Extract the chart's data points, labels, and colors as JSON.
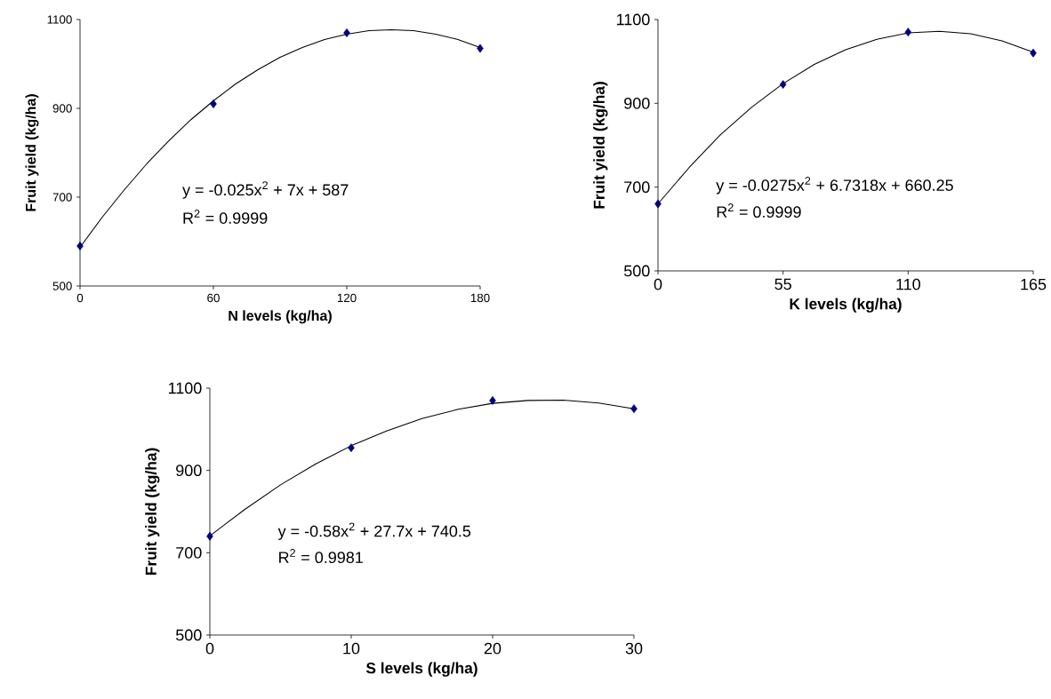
{
  "chart_data": [
    {
      "type": "scatter",
      "xlabel": "N levels (kg/ha)",
      "ylabel": "Fruit yield (kg/ha)",
      "xlim": [
        0,
        180
      ],
      "ylim": [
        500,
        1100
      ],
      "xticks": [
        0,
        60,
        120,
        180
      ],
      "yticks": [
        500,
        700,
        900,
        1100
      ],
      "marker": "diamond",
      "annotations": [
        "y = -0.025x$^{2}$ + 7x + 587",
        "R$^{2}$ = 0.9999"
      ],
      "series": [
        {
          "type": "line",
          "color": "#000000",
          "marker": "none",
          "x": [
            0,
            10,
            20,
            30,
            40,
            50,
            60,
            70,
            80,
            90,
            100,
            110,
            120,
            130,
            140,
            150,
            160,
            170,
            180
          ],
          "values": [
            587,
            655,
            717,
            775,
            827,
            875,
            917,
            955,
            987,
            1015,
            1037,
            1055,
            1067,
            1075,
            1077,
            1075,
            1067,
            1055,
            1037
          ]
        },
        {
          "color": "#000080",
          "x": [
            0,
            60,
            120,
            180
          ],
          "values": [
            590,
            910,
            1070,
            1035
          ]
        }
      ]
    },
    {
      "type": "scatter",
      "xlabel": "K levels (kg/ha)",
      "ylabel": "Fruit yield (kg/ha)",
      "xlim": [
        0,
        165
      ],
      "ylim": [
        500,
        1100
      ],
      "xticks": [
        0,
        55,
        110,
        165
      ],
      "yticks": [
        500,
        700,
        900,
        1100
      ],
      "marker": "diamond",
      "annotations": [
        "y = -0.0275x$^{2}$ + 6.7318x + 660.25",
        "R$^{2}$ = 0.9999"
      ],
      "series": [
        {
          "type": "line",
          "color": "#000000",
          "marker": "none",
          "x": [
            0,
            13.75,
            27.5,
            41.25,
            55,
            68.75,
            82.5,
            96.25,
            110,
            123.75,
            137.5,
            151.25,
            165
          ],
          "values": [
            660,
            747,
            825,
            891,
            947,
            993,
            1028,
            1053,
            1068,
            1072,
            1066,
            1049,
            1022
          ]
        },
        {
          "color": "#000080",
          "x": [
            0,
            55,
            110,
            165
          ],
          "values": [
            660,
            945,
            1070,
            1020
          ]
        }
      ]
    },
    {
      "type": "scatter",
      "xlabel": "S levels (kg/ha)",
      "ylabel": "Fruit yield (kg/ha)",
      "xlim": [
        0,
        30
      ],
      "ylim": [
        500,
        1100
      ],
      "xticks": [
        0,
        10,
        20,
        30
      ],
      "yticks": [
        500,
        700,
        900,
        1100
      ],
      "marker": "diamond",
      "annotations": [
        "y = -0.58x$^{2}$ + 27.7x + 740.5",
        "R$^{2}$ = 0.9981"
      ],
      "series": [
        {
          "type": "line",
          "color": "#000000",
          "marker": "none",
          "x": [
            0,
            2.5,
            5,
            7.5,
            10,
            12.5,
            15,
            17.5,
            20,
            22.5,
            25,
            27.5,
            30
          ],
          "values": [
            741,
            806,
            865,
            916,
            960,
            996,
            1026,
            1048,
            1063,
            1070,
            1071,
            1064,
            1050
          ]
        },
        {
          "color": "#000080",
          "x": [
            0,
            10,
            20,
            30
          ],
          "values": [
            740,
            955,
            1070,
            1050
          ]
        }
      ]
    }
  ]
}
